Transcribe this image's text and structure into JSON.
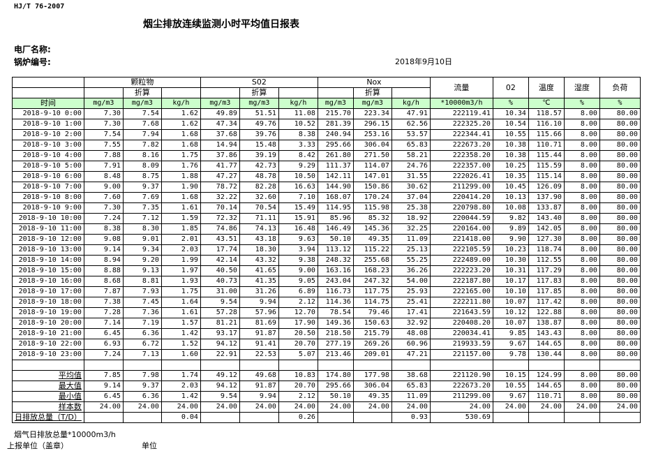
{
  "header": {
    "standard": "HJ/T  76-2007",
    "title": "烟尘排放连续监测小时平均值日报表",
    "plant_label": "电厂名称:",
    "boiler_label": "锅炉编号:",
    "date": "2018年9月10日"
  },
  "table": {
    "groups": {
      "pm": "颗粒物",
      "so2": "S02",
      "nox": "Nox",
      "flow": "流量",
      "o2": "02",
      "temp": "温度",
      "humidity": "湿度",
      "load": "负荷"
    },
    "converted": "折算",
    "units": [
      "时间",
      "mg/m3",
      "mg/m3",
      "kg/h",
      "mg/m3",
      "mg/m3",
      "kg/h",
      "mg/m3",
      "mg/m3",
      "kg/h",
      "*10000m3/h",
      "%",
      "℃",
      "%",
      "%"
    ],
    "rows": [
      [
        "2018-9-10 0:00",
        "7.30",
        "7.54",
        "1.62",
        "49.89",
        "51.51",
        "11.08",
        "215.70",
        "223.34",
        "47.91",
        "222119.41",
        "10.34",
        "118.57",
        "8.00",
        "80.00"
      ],
      [
        "2018-9-10 1:00",
        "7.30",
        "7.68",
        "1.62",
        "47.34",
        "49.76",
        "10.52",
        "281.39",
        "296.15",
        "62.56",
        "222325.20",
        "10.54",
        "116.10",
        "8.00",
        "80.00"
      ],
      [
        "2018-9-10 2:00",
        "7.54",
        "7.94",
        "1.68",
        "37.68",
        "39.76",
        "8.38",
        "240.94",
        "253.16",
        "53.57",
        "222344.41",
        "10.55",
        "115.66",
        "8.00",
        "80.00"
      ],
      [
        "2018-9-10 3:00",
        "7.55",
        "7.82",
        "1.68",
        "14.94",
        "15.48",
        "3.33",
        "295.66",
        "306.04",
        "65.83",
        "222673.20",
        "10.38",
        "110.71",
        "8.00",
        "80.00"
      ],
      [
        "2018-9-10 4:00",
        "7.88",
        "8.16",
        "1.75",
        "37.86",
        "39.19",
        "8.42",
        "261.80",
        "271.50",
        "58.21",
        "222358.20",
        "10.38",
        "115.44",
        "8.00",
        "80.00"
      ],
      [
        "2018-9-10 5:00",
        "7.91",
        "8.09",
        "1.76",
        "41.77",
        "42.73",
        "9.29",
        "111.37",
        "114.07",
        "24.76",
        "222357.00",
        "10.25",
        "115.59",
        "8.00",
        "80.00"
      ],
      [
        "2018-9-10 6:00",
        "8.48",
        "8.75",
        "1.88",
        "47.27",
        "48.78",
        "10.50",
        "142.11",
        "147.01",
        "31.55",
        "222026.41",
        "10.35",
        "115.14",
        "8.00",
        "80.00"
      ],
      [
        "2018-9-10 7:00",
        "9.00",
        "9.37",
        "1.90",
        "78.72",
        "82.28",
        "16.63",
        "144.90",
        "150.86",
        "30.62",
        "211299.00",
        "10.45",
        "126.09",
        "8.00",
        "80.00"
      ],
      [
        "2018-9-10 8:00",
        "7.60",
        "7.69",
        "1.68",
        "32.22",
        "32.60",
        "7.10",
        "168.07",
        "170.24",
        "37.04",
        "220414.20",
        "10.13",
        "137.90",
        "8.00",
        "80.00"
      ],
      [
        "2018-9-10 9:00",
        "7.30",
        "7.35",
        "1.61",
        "70.14",
        "70.54",
        "15.49",
        "114.95",
        "115.98",
        "25.38",
        "220798.80",
        "10.08",
        "133.87",
        "8.00",
        "80.00"
      ],
      [
        "2018-9-10 10:00",
        "7.24",
        "7.12",
        "1.59",
        "72.32",
        "71.11",
        "15.91",
        "85.96",
        "85.32",
        "18.92",
        "220044.59",
        "9.82",
        "143.40",
        "8.00",
        "80.00"
      ],
      [
        "2018-9-10 11:00",
        "8.38",
        "8.30",
        "1.85",
        "74.86",
        "74.13",
        "16.48",
        "146.49",
        "145.36",
        "32.25",
        "220164.00",
        "9.89",
        "142.05",
        "8.00",
        "80.00"
      ],
      [
        "2018-9-10 12:00",
        "9.08",
        "9.01",
        "2.01",
        "43.51",
        "43.18",
        "9.63",
        "50.10",
        "49.35",
        "11.09",
        "221418.00",
        "9.90",
        "127.30",
        "8.00",
        "80.00"
      ],
      [
        "2018-9-10 13:00",
        "9.14",
        "9.34",
        "2.03",
        "17.74",
        "18.30",
        "3.94",
        "113.12",
        "115.22",
        "25.13",
        "222105.59",
        "10.23",
        "118.74",
        "8.00",
        "80.00"
      ],
      [
        "2018-9-10 14:00",
        "8.94",
        "9.20",
        "1.99",
        "42.14",
        "43.32",
        "9.38",
        "248.32",
        "255.68",
        "55.25",
        "222489.00",
        "10.30",
        "112.55",
        "8.00",
        "80.00"
      ],
      [
        "2018-9-10 15:00",
        "8.88",
        "9.13",
        "1.97",
        "40.50",
        "41.65",
        "9.00",
        "163.16",
        "168.23",
        "36.26",
        "222223.20",
        "10.31",
        "117.29",
        "8.00",
        "80.00"
      ],
      [
        "2018-9-10 16:00",
        "8.68",
        "8.81",
        "1.93",
        "40.73",
        "41.35",
        "9.05",
        "243.04",
        "247.32",
        "54.00",
        "222187.80",
        "10.17",
        "117.83",
        "8.00",
        "80.00"
      ],
      [
        "2018-9-10 17:00",
        "7.87",
        "7.93",
        "1.75",
        "31.00",
        "31.26",
        "6.89",
        "116.73",
        "117.75",
        "25.93",
        "222165.00",
        "10.10",
        "117.85",
        "8.00",
        "80.00"
      ],
      [
        "2018-9-10 18:00",
        "7.38",
        "7.45",
        "1.64",
        "9.54",
        "9.94",
        "2.12",
        "114.36",
        "114.75",
        "25.41",
        "222211.80",
        "10.07",
        "117.42",
        "8.00",
        "80.00"
      ],
      [
        "2018-9-10 19:00",
        "7.28",
        "7.36",
        "1.61",
        "57.28",
        "57.96",
        "12.70",
        "78.54",
        "79.46",
        "17.41",
        "221643.59",
        "10.12",
        "122.88",
        "8.00",
        "80.00"
      ],
      [
        "2018-9-10 20:00",
        "7.14",
        "7.19",
        "1.57",
        "81.21",
        "81.69",
        "17.90",
        "149.36",
        "150.63",
        "32.92",
        "220408.20",
        "10.07",
        "138.87",
        "8.00",
        "80.00"
      ],
      [
        "2018-9-10 21:00",
        "6.45",
        "6.36",
        "1.42",
        "93.17",
        "91.87",
        "20.50",
        "218.50",
        "215.79",
        "48.08",
        "220034.41",
        "9.85",
        "143.43",
        "8.00",
        "80.00"
      ],
      [
        "2018-9-10 22:00",
        "6.93",
        "6.72",
        "1.52",
        "94.12",
        "91.41",
        "20.70",
        "277.19",
        "269.26",
        "60.96",
        "219933.59",
        "9.67",
        "144.65",
        "8.00",
        "80.00"
      ],
      [
        "2018-9-10 23:00",
        "7.24",
        "7.13",
        "1.60",
        "22.91",
        "22.53",
        "5.07",
        "213.46",
        "209.01",
        "47.21",
        "221157.00",
        "9.78",
        "130.44",
        "8.00",
        "80.00"
      ]
    ],
    "stats": [
      [
        "平均值",
        "7.85",
        "7.98",
        "1.74",
        "49.12",
        "49.68",
        "10.83",
        "174.80",
        "177.98",
        "38.68",
        "221120.90",
        "10.15",
        "124.99",
        "8.00",
        "80.00"
      ],
      [
        "最大值",
        "9.14",
        "9.37",
        "2.03",
        "94.12",
        "91.87",
        "20.70",
        "295.66",
        "306.04",
        "65.83",
        "222673.20",
        "10.55",
        "144.65",
        "8.00",
        "80.00"
      ],
      [
        "最小值",
        "6.45",
        "6.36",
        "1.42",
        "9.54",
        "9.94",
        "2.12",
        "50.10",
        "49.35",
        "11.09",
        "211299.00",
        "9.67",
        "110.71",
        "8.00",
        "80.00"
      ],
      [
        "样本数",
        "24.00",
        "24.00",
        "24.00",
        "24.00",
        "24.00",
        "24.00",
        "24.00",
        "24.00",
        "24.00",
        "24.00",
        "24.00",
        "24.00",
        "24.00",
        "24.00"
      ]
    ],
    "total": [
      "日排放总量（T/D）",
      "",
      "",
      "0.04",
      "",
      "",
      "0.26",
      "",
      "",
      "0.93",
      "530.69",
      "",
      "",
      "",
      ""
    ]
  },
  "footer": {
    "flue_gas_total": "烟气日排放总量*10000m3/h",
    "reporting_unit": "上报单位（盖章）",
    "unit": "单位"
  }
}
